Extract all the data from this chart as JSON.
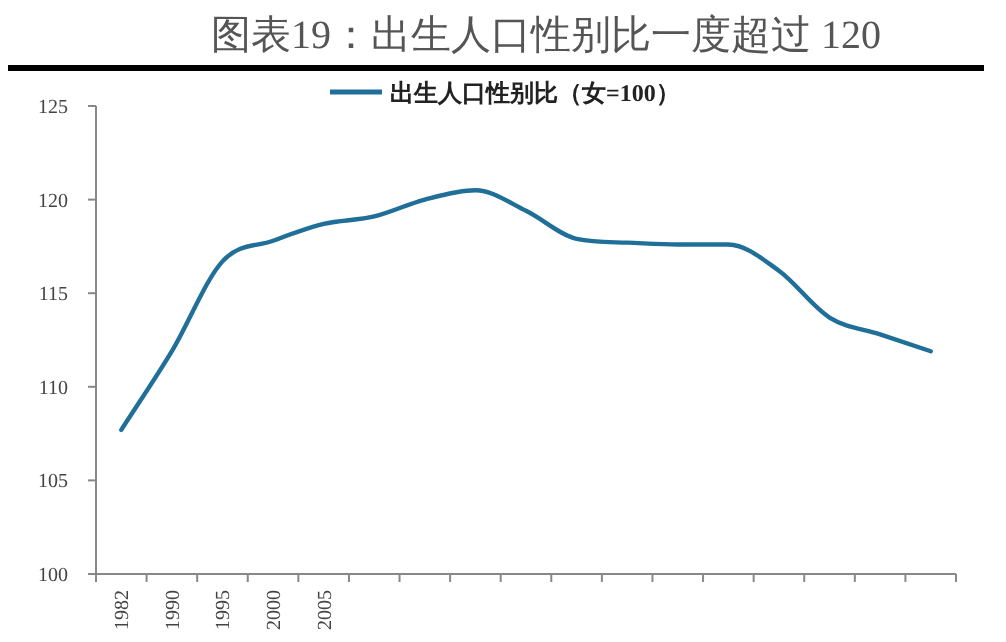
{
  "chart_data": {
    "type": "line",
    "title": "图表19：出生人口性别比一度超过 120",
    "categories": [
      "1982",
      "1990",
      "1995",
      "2000",
      "2005",
      null,
      null,
      null,
      null,
      null,
      null,
      null,
      null,
      null,
      null,
      null,
      null
    ],
    "series": [
      {
        "name": "出生人口性别比（女=100）",
        "color": "#1f6f99",
        "values": [
          107.7,
          111.9,
          116.7,
          117.8,
          118.7,
          119.1,
          120.0,
          120.5,
          119.4,
          117.9,
          117.7,
          117.6,
          117.6,
          116.2,
          113.7,
          112.8,
          111.9
        ]
      }
    ],
    "ylim": [
      100,
      125
    ],
    "yticks": [
      100,
      105,
      110,
      115,
      120,
      125
    ],
    "legend": "top",
    "grid": false
  }
}
